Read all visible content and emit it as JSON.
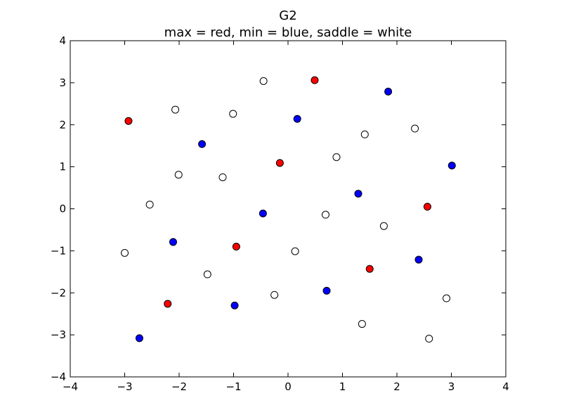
{
  "chart_data": {
    "type": "scatter",
    "title": "G2",
    "subtitle": "max = red, min = blue, saddle = white",
    "xlabel": "",
    "ylabel": "",
    "xlim": [
      -4,
      4
    ],
    "ylim": [
      -4,
      4
    ],
    "xticks": [
      "−4",
      "−3",
      "−2",
      "−1",
      "0",
      "1",
      "2",
      "3",
      "4"
    ],
    "yticks": [
      "−4",
      "−3",
      "−2",
      "−1",
      "0",
      "1",
      "2",
      "3",
      "4"
    ],
    "grid": false,
    "colors": {
      "max": "#ff0000",
      "min": "#0000ff",
      "saddle": "#ffffff",
      "edge": "#000000"
    },
    "series": [
      {
        "kind": "max",
        "color": "#ff0000",
        "points": [
          [
            0.49,
            3.06
          ],
          [
            -2.93,
            2.09
          ],
          [
            -0.15,
            1.09
          ],
          [
            2.56,
            0.05
          ],
          [
            -0.95,
            -0.9
          ],
          [
            1.5,
            -1.43
          ],
          [
            -2.21,
            -2.26
          ]
        ]
      },
      {
        "kind": "min",
        "color": "#0000ff",
        "points": [
          [
            1.84,
            2.79
          ],
          [
            0.17,
            2.14
          ],
          [
            -1.58,
            1.54
          ],
          [
            3.01,
            1.03
          ],
          [
            1.29,
            0.36
          ],
          [
            -0.46,
            -0.11
          ],
          [
            -2.11,
            -0.79
          ],
          [
            2.4,
            -1.21
          ],
          [
            0.71,
            -1.95
          ],
          [
            -0.98,
            -2.3
          ],
          [
            -2.73,
            -3.08
          ]
        ]
      },
      {
        "kind": "saddle",
        "color": "#ffffff",
        "points": [
          [
            -0.45,
            3.04
          ],
          [
            -2.07,
            2.36
          ],
          [
            -1.01,
            2.26
          ],
          [
            1.41,
            1.77
          ],
          [
            2.33,
            1.91
          ],
          [
            0.89,
            1.23
          ],
          [
            -2.01,
            0.81
          ],
          [
            -1.2,
            0.75
          ],
          [
            -2.54,
            0.1
          ],
          [
            0.69,
            -0.14
          ],
          [
            1.76,
            -0.41
          ],
          [
            -3.0,
            -1.05
          ],
          [
            0.13,
            -1.01
          ],
          [
            -1.48,
            -1.56
          ],
          [
            -0.25,
            -2.05
          ],
          [
            2.91,
            -2.13
          ],
          [
            1.36,
            -2.74
          ],
          [
            2.59,
            -3.09
          ]
        ]
      }
    ]
  }
}
